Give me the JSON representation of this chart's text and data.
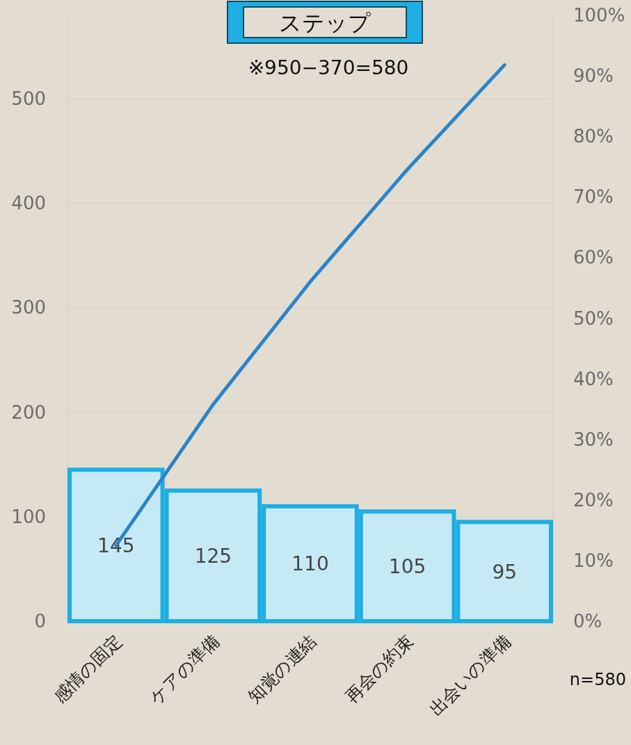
{
  "chart_data": {
    "type": "bar",
    "title": "ステップ",
    "categories": [
      "感情の固定",
      "ケアの準備",
      "知覚の連結",
      "再会の約束",
      "出会いの準備"
    ],
    "ylim": [
      0,
      580
    ],
    "yticks": [
      0,
      100,
      200,
      300,
      400,
      500
    ],
    "y2lim": [
      0,
      100
    ],
    "y2ticks": [
      {
        "value": 0,
        "label": "0%"
      },
      {
        "value": 10,
        "label": "10%"
      },
      {
        "value": 20,
        "label": "20%"
      },
      {
        "value": 30,
        "label": "30%"
      },
      {
        "value": 40,
        "label": "40%"
      },
      {
        "value": 50,
        "label": "50%"
      },
      {
        "value": 60,
        "label": "60%"
      },
      {
        "value": 70,
        "label": "70%"
      },
      {
        "value": 80,
        "label": "80%"
      },
      {
        "value": 90,
        "label": "90%"
      },
      {
        "value": 100,
        "label": "100%"
      }
    ],
    "grid": "y",
    "series": [
      {
        "color": "#c5eaf5",
        "values": [
          145,
          125,
          110,
          105,
          95
        ],
        "value_labels": [
          "145",
          "125",
          "110",
          "105",
          "95"
        ]
      },
      {
        "type": "line",
        "color": "#2a84c8",
        "values": [
          72.5,
          207.5,
          325,
          432.5,
          532.5
        ]
      }
    ],
    "annotations": [
      "※950−370=580",
      "n=580"
    ]
  }
}
